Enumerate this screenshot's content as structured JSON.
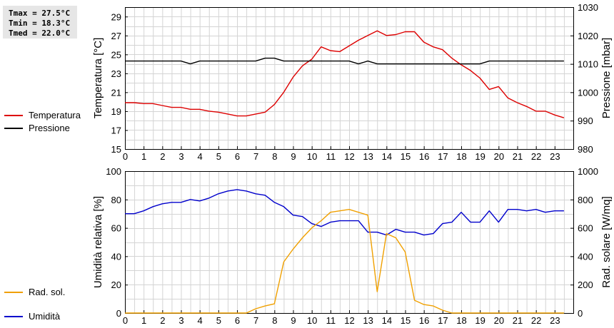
{
  "stats": {
    "tmax": "Tmax = 27.5°C",
    "tmin": "Tmin = 18.3°C",
    "tmed": "Tmed = 22.0°C"
  },
  "legend_top": [
    {
      "label": "Temperatura",
      "color": "#dd0000"
    },
    {
      "label": "Pressione",
      "color": "#000000"
    }
  ],
  "legend_bottom": [
    {
      "label": "Umidità",
      "color": "#0000cc"
    },
    {
      "label": "Rad. sol.",
      "color": "#f0a000"
    }
  ],
  "chart_data": [
    {
      "type": "line",
      "x_ticks": [
        "0",
        "1",
        "2",
        "3",
        "4",
        "5",
        "6",
        "7",
        "8",
        "9",
        "10",
        "11",
        "12",
        "13",
        "14",
        "15",
        "16",
        "17",
        "18",
        "19",
        "20",
        "21",
        "22",
        "23"
      ],
      "xlim": [
        0,
        24
      ],
      "grid": true,
      "ylabel": "Temperatura [°C]",
      "ylim": [
        15,
        30
      ],
      "y_ticks": [
        "15",
        "17",
        "19",
        "21",
        "23",
        "25",
        "27",
        "29"
      ],
      "ylabel_right": "Pressione [mbar]",
      "ylim_right": [
        980,
        1030
      ],
      "y_ticks_right": [
        "980",
        "990",
        "1000",
        "1010",
        "1020",
        "1030"
      ],
      "series": [
        {
          "name": "Temperatura",
          "axis": "left",
          "color": "#dd0000",
          "x": [
            0,
            0.5,
            1,
            1.5,
            2,
            2.5,
            3,
            3.5,
            4,
            4.5,
            5,
            5.5,
            6,
            6.5,
            7,
            7.5,
            8,
            8.5,
            9,
            9.5,
            10,
            10.5,
            11,
            11.5,
            12,
            12.5,
            13,
            13.5,
            14,
            14.5,
            15,
            15.5,
            16,
            16.5,
            17,
            17.5,
            18,
            18.5,
            19,
            19.5,
            20,
            20.5,
            21,
            21.5,
            22,
            22.5,
            23,
            23.5
          ],
          "y": [
            19.9,
            19.9,
            19.8,
            19.8,
            19.6,
            19.4,
            19.4,
            19.2,
            19.2,
            19.0,
            18.9,
            18.7,
            18.5,
            18.5,
            18.7,
            18.9,
            19.7,
            21.0,
            22.6,
            23.8,
            24.5,
            25.8,
            25.4,
            25.3,
            25.9,
            26.5,
            27.0,
            27.5,
            27.0,
            27.1,
            27.4,
            27.4,
            26.3,
            25.8,
            25.5,
            24.6,
            23.9,
            23.3,
            22.5,
            21.3,
            21.6,
            20.4,
            19.9,
            19.5,
            19.0,
            19.0,
            18.6,
            18.3
          ]
        },
        {
          "name": "Pressione",
          "axis": "right",
          "color": "#000000",
          "x": [
            0,
            0.5,
            1,
            1.5,
            2,
            2.5,
            3,
            3.5,
            4,
            4.5,
            5,
            5.5,
            6,
            6.5,
            7,
            7.5,
            8,
            8.5,
            9,
            9.5,
            10,
            10.5,
            11,
            11.5,
            12,
            12.5,
            13,
            13.5,
            14,
            14.5,
            15,
            15.5,
            16,
            16.5,
            17,
            17.5,
            18,
            18.5,
            19,
            19.5,
            20,
            20.5,
            21,
            21.5,
            22,
            22.5,
            23,
            23.5
          ],
          "y": [
            1011,
            1011,
            1011,
            1011,
            1011,
            1011,
            1011,
            1010,
            1011,
            1011,
            1011,
            1011,
            1011,
            1011,
            1011,
            1012,
            1012,
            1011,
            1011,
            1011,
            1011,
            1011,
            1011,
            1011,
            1011,
            1010,
            1011,
            1010,
            1010,
            1010,
            1010,
            1010,
            1010,
            1010,
            1010,
            1010,
            1010,
            1010,
            1010,
            1011,
            1011,
            1011,
            1011,
            1011,
            1011,
            1011,
            1011,
            1011
          ]
        }
      ]
    },
    {
      "type": "line",
      "x_ticks": [
        "0",
        "1",
        "2",
        "3",
        "4",
        "5",
        "6",
        "7",
        "8",
        "9",
        "10",
        "11",
        "12",
        "13",
        "14",
        "15",
        "16",
        "17",
        "18",
        "19",
        "20",
        "21",
        "22",
        "23"
      ],
      "xlim": [
        0,
        24
      ],
      "grid": true,
      "ylabel": "Umidità relativa [%]",
      "ylim": [
        0,
        100
      ],
      "y_ticks": [
        "0",
        "20",
        "40",
        "60",
        "80",
        "100"
      ],
      "ylabel_right": "Rad. solare [W/mq]",
      "ylim_right": [
        0,
        1000
      ],
      "y_ticks_right": [
        "0",
        "200",
        "400",
        "600",
        "800",
        "1000"
      ],
      "series": [
        {
          "name": "Umidità",
          "axis": "left",
          "color": "#0000cc",
          "x": [
            0,
            0.5,
            1,
            1.5,
            2,
            2.5,
            3,
            3.5,
            4,
            4.5,
            5,
            5.5,
            6,
            6.5,
            7,
            7.5,
            8,
            8.5,
            9,
            9.5,
            10,
            10.5,
            11,
            11.5,
            12,
            12.5,
            13,
            13.5,
            14,
            14.5,
            15,
            15.5,
            16,
            16.5,
            17,
            17.5,
            18,
            18.5,
            19,
            19.5,
            20,
            20.5,
            21,
            21.5,
            22,
            22.5,
            23,
            23.5
          ],
          "y": [
            70,
            70,
            72,
            75,
            77,
            78,
            78,
            80,
            79,
            81,
            84,
            86,
            87,
            86,
            84,
            83,
            78,
            75,
            69,
            68,
            63,
            61,
            64,
            65,
            65,
            65,
            57,
            57,
            55,
            59,
            57,
            57,
            55,
            56,
            63,
            64,
            71,
            64,
            64,
            72,
            64,
            73,
            73,
            72,
            73,
            71,
            72,
            72
          ]
        },
        {
          "name": "Rad. sol.",
          "axis": "right",
          "color": "#f0a000",
          "x": [
            0,
            0.5,
            1,
            1.5,
            2,
            2.5,
            3,
            3.5,
            4,
            4.5,
            5,
            5.5,
            6,
            6.5,
            7,
            7.5,
            8,
            8.5,
            9,
            9.5,
            10,
            10.5,
            11,
            11.5,
            12,
            12.5,
            13,
            13.5,
            14,
            14.5,
            15,
            15.5,
            16,
            16.5,
            17,
            17.5,
            18,
            18.5,
            19,
            19.5,
            20,
            20.5,
            21,
            21.5,
            22,
            22.5,
            23,
            23.5
          ],
          "y": [
            0,
            0,
            0,
            0,
            0,
            0,
            0,
            0,
            0,
            0,
            0,
            0,
            0,
            0,
            30,
            50,
            65,
            360,
            450,
            530,
            600,
            650,
            710,
            720,
            730,
            710,
            690,
            150,
            560,
            530,
            430,
            90,
            60,
            50,
            20,
            0,
            0,
            0,
            0,
            0,
            0,
            0,
            0,
            0,
            0,
            0,
            0,
            0
          ]
        }
      ]
    }
  ]
}
